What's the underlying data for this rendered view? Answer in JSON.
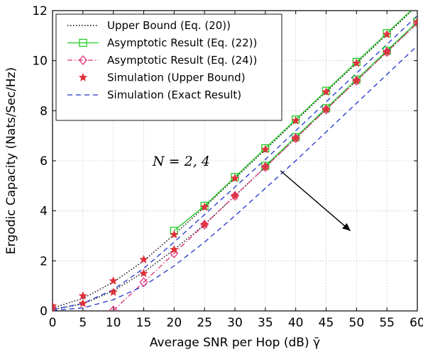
{
  "chart_data": {
    "type": "line",
    "xlabel": "Average SNR per Hop (dB) γ̄",
    "ylabel": "Ergodic Capacity (Nats/Sec/Hz)",
    "xlim": [
      0,
      60
    ],
    "ylim": [
      0,
      12
    ],
    "xticks": [
      0,
      5,
      10,
      15,
      20,
      25,
      30,
      35,
      40,
      45,
      50,
      55,
      60
    ],
    "yticks": [
      0,
      2,
      4,
      6,
      8,
      10,
      12
    ],
    "grid": true,
    "legend_position": "top-left",
    "annotation": {
      "text": "N = 2, 4",
      "arrow_from": [
        37.5,
        5.6
      ],
      "arrow_to": [
        49,
        3.2
      ]
    },
    "series": [
      {
        "name": "Upper Bound (Eq. (20))",
        "color": "#000000",
        "style": "dotted",
        "marker": "none",
        "curves": [
          {
            "x": [
              0,
              5,
              10,
              15,
              20,
              25,
              30,
              35,
              40,
              45,
              50,
              55,
              60
            ],
            "y": [
              0.12,
              0.5,
              1.15,
              2.0,
              3.05,
              4.15,
              5.3,
              6.45,
              7.6,
              8.75,
              9.9,
              11.05,
              12.2
            ]
          },
          {
            "x": [
              0,
              5,
              10,
              15,
              20,
              25,
              30,
              35,
              40,
              45,
              50,
              55,
              60
            ],
            "y": [
              0.05,
              0.28,
              0.8,
              1.55,
              2.45,
              3.45,
              4.6,
              5.75,
              6.9,
              8.05,
              9.2,
              10.35,
              11.5
            ]
          }
        ]
      },
      {
        "name": "Asymptotic Result (Eq. (22))",
        "color": "#22cc22",
        "style": "solid",
        "marker": "square",
        "curves": [
          {
            "x": [
              20,
              25,
              30,
              35,
              40,
              45,
              50,
              55,
              60
            ],
            "y": [
              3.2,
              4.2,
              5.35,
              6.5,
              7.65,
              8.8,
              9.95,
              11.1,
              12.25
            ]
          },
          {
            "x": [
              35,
              40,
              45,
              50,
              55,
              60
            ],
            "y": [
              5.8,
              6.95,
              8.1,
              9.25,
              10.4,
              11.55
            ]
          }
        ]
      },
      {
        "name": "Asymptotic Result (Eq. (24))",
        "color": "#e0307a",
        "style": "dashdot",
        "marker": "diamond",
        "curves": [
          {
            "x": [
              10,
              15,
              20,
              25,
              30,
              35,
              40,
              45,
              50,
              55,
              60
            ],
            "y": [
              0.02,
              1.15,
              2.3,
              3.45,
              4.6,
              5.75,
              6.9,
              8.05,
              9.2,
              10.35,
              11.5
            ]
          }
        ]
      },
      {
        "name": "Simulation (Upper Bound)",
        "color": "#e0303a",
        "style": "none",
        "marker": "star",
        "curves": [
          {
            "x": [
              0,
              5,
              10,
              15,
              20,
              25,
              30,
              35,
              40,
              45,
              50,
              55,
              60
            ],
            "y": [
              0.2,
              0.6,
              1.2,
              2.05,
              3.05,
              4.15,
              5.3,
              6.45,
              7.6,
              8.75,
              9.9,
              11.05,
              11.55
            ]
          },
          {
            "x": [
              0,
              5,
              10,
              15,
              20,
              25,
              30,
              35,
              40,
              45,
              50,
              55
            ],
            "y": [
              0.1,
              0.3,
              0.75,
              1.5,
              2.45,
              3.45,
              4.6,
              5.75,
              6.9,
              8.05,
              9.2,
              10.35
            ]
          }
        ]
      },
      {
        "name": "Simulation (Exact Result)",
        "color": "#2233cc",
        "style": "dashed",
        "marker": "none",
        "curves": [
          {
            "x": [
              0,
              5,
              10,
              15,
              20,
              25,
              30,
              35,
              40,
              45,
              50,
              55,
              60
            ],
            "y": [
              0.06,
              0.3,
              0.85,
              1.7,
              2.75,
              3.85,
              4.95,
              6.05,
              7.2,
              8.35,
              9.5,
              10.65,
              11.8
            ]
          },
          {
            "x": [
              0,
              5,
              10,
              15,
              20,
              25,
              30,
              35,
              40,
              45,
              50,
              55,
              60
            ],
            "y": [
              0.02,
              0.12,
              0.45,
              1.0,
              1.8,
              2.75,
              3.8,
              4.9,
              6.0,
              7.15,
              8.3,
              9.45,
              10.6
            ]
          }
        ]
      }
    ]
  }
}
